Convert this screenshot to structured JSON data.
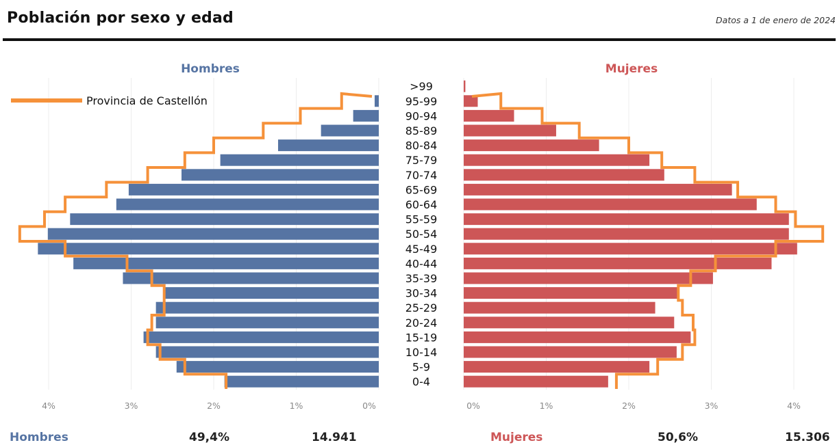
{
  "title": "Población por sexo y edad",
  "subtitle": "Datos a 1 de enero de 2024",
  "colors": {
    "male": "#5674a3",
    "female": "#cd5657",
    "province": "#f5913a"
  },
  "chart_data": {
    "type": "bar",
    "orientation": "horizontal-population-pyramid",
    "categories": [
      "0-4",
      "5-9",
      "10-14",
      "15-19",
      "20-24",
      "25-29",
      "30-34",
      "35-39",
      "40-44",
      "45-49",
      "50-54",
      "55-59",
      "60-64",
      "65-69",
      "70-74",
      "75-79",
      "80-84",
      "85-89",
      "90-94",
      "95-99",
      ">99"
    ],
    "series": [
      {
        "name": "Hombres",
        "values": [
          1.87,
          2.45,
          2.7,
          2.85,
          2.7,
          2.7,
          2.6,
          3.1,
          3.7,
          4.13,
          4.01,
          3.74,
          3.18,
          3.03,
          2.39,
          1.92,
          1.22,
          0.7,
          0.31,
          0.05,
          0.0
        ]
      },
      {
        "name": "Mujeres",
        "values": [
          1.75,
          2.25,
          2.58,
          2.75,
          2.55,
          2.32,
          2.6,
          3.02,
          3.73,
          4.04,
          3.94,
          3.94,
          3.55,
          3.25,
          2.43,
          2.25,
          1.64,
          1.12,
          0.61,
          0.17,
          0.02
        ]
      },
      {
        "name": "Provincia de Castellón",
        "male": [
          1.85,
          2.35,
          2.65,
          2.8,
          2.75,
          2.6,
          2.6,
          2.75,
          3.05,
          3.8,
          4.35,
          4.05,
          3.8,
          3.3,
          2.8,
          2.35,
          2.0,
          1.4,
          0.95,
          0.45,
          0.0
        ],
        "female": [
          1.85,
          2.35,
          2.65,
          2.8,
          2.78,
          2.65,
          2.6,
          2.75,
          3.05,
          3.78,
          4.35,
          4.02,
          3.78,
          3.32,
          2.8,
          2.4,
          2.0,
          1.4,
          0.95,
          0.45,
          0.0
        ]
      }
    ],
    "panels": {
      "left": "Hombres",
      "right": "Mujeres"
    },
    "legend": {
      "label": "Provincia de Castellón",
      "position": "top-left"
    },
    "x_ticks_left": [
      "4%",
      "3%",
      "2%",
      "1%",
      "0%"
    ],
    "x_ticks_right": [
      "0%",
      "1%",
      "2%",
      "3%",
      "4%"
    ],
    "xlim": [
      0,
      4.5
    ],
    "grid": true
  },
  "footer": {
    "male_label": "Hombres",
    "male_pct": "49,4%",
    "male_count": "14.941",
    "female_label": "Mujeres",
    "female_pct": "50,6%",
    "female_count": "15.306"
  }
}
